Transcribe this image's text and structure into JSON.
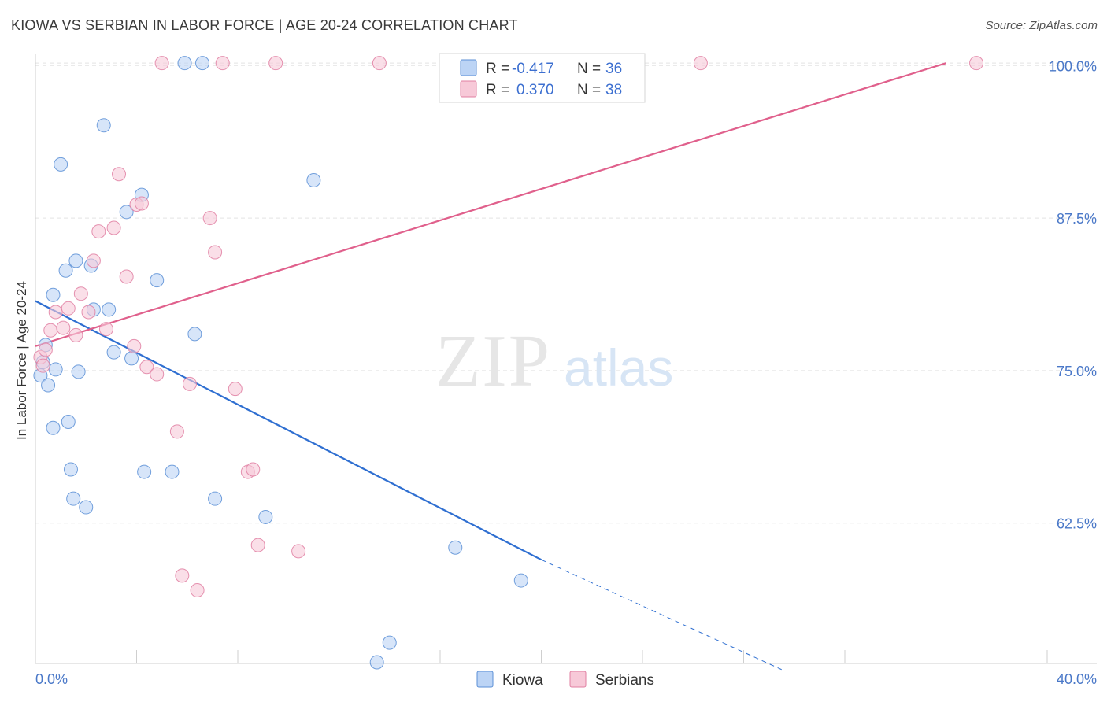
{
  "title": "KIOWA VS SERBIAN IN LABOR FORCE | AGE 20-24 CORRELATION CHART",
  "source": "Source: ZipAtlas.com",
  "watermark": {
    "zip": "ZIP",
    "atlas": "atlas"
  },
  "chart_data": {
    "type": "scatter",
    "title": "KIOWA VS SERBIAN IN LABOR FORCE | AGE 20-24 CORRELATION CHART",
    "xlabel": "",
    "ylabel": "In Labor Force | Age 20-24",
    "xlim": [
      0,
      40
    ],
    "ylim": [
      51,
      101.5
    ],
    "x_tick_labels": [
      "0.0%",
      "40.0%"
    ],
    "y_ticks": [
      62.5,
      75.0,
      87.5,
      100.0
    ],
    "y_tick_labels": [
      "62.5%",
      "75.0%",
      "87.5%",
      "100.0%"
    ],
    "grid": true,
    "legend_position": "top-center",
    "stats": [
      {
        "label_r": "R =",
        "r": "-0.417",
        "label_n": "N =",
        "n": "36"
      },
      {
        "label_r": "R =",
        "r": "0.370",
        "label_n": "N =",
        "n": "38"
      }
    ],
    "series": [
      {
        "name": "Kiowa",
        "color": "#5b8fd6",
        "fill": "#bcd4f5",
        "trend": {
          "x0": 0.0,
          "y0": 80.7,
          "x1": 20.0,
          "y1": 59.5,
          "dash_x1": 29.5,
          "dash_y1": 50.5
        },
        "points": [
          [
            0.2,
            74.6
          ],
          [
            0.3,
            75.7
          ],
          [
            0.4,
            77.1
          ],
          [
            0.5,
            73.8
          ],
          [
            0.8,
            75.1
          ],
          [
            0.7,
            81.2
          ],
          [
            0.7,
            70.3
          ],
          [
            1.0,
            91.9
          ],
          [
            1.2,
            83.2
          ],
          [
            1.3,
            70.8
          ],
          [
            1.4,
            66.9
          ],
          [
            1.5,
            64.5
          ],
          [
            1.6,
            84.0
          ],
          [
            1.7,
            74.9
          ],
          [
            2.0,
            63.8
          ],
          [
            2.2,
            83.6
          ],
          [
            2.3,
            80.0
          ],
          [
            2.7,
            95.1
          ],
          [
            2.9,
            80.0
          ],
          [
            3.1,
            76.5
          ],
          [
            3.6,
            88.0
          ],
          [
            3.8,
            76.0
          ],
          [
            4.2,
            89.4
          ],
          [
            4.3,
            66.7
          ],
          [
            4.8,
            82.4
          ],
          [
            5.4,
            66.7
          ],
          [
            5.9,
            100.2
          ],
          [
            6.3,
            78.0
          ],
          [
            6.6,
            100.2
          ],
          [
            7.1,
            64.5
          ],
          [
            9.1,
            63.0
          ],
          [
            11.0,
            90.6
          ],
          [
            13.5,
            51.1
          ],
          [
            14.0,
            52.7
          ],
          [
            16.6,
            60.5
          ],
          [
            19.2,
            57.8
          ]
        ]
      },
      {
        "name": "Serbians",
        "color": "#e07fa2",
        "fill": "#f7c9d8",
        "trend": {
          "x0": 0.0,
          "y0": 77.0,
          "x1": 36.0,
          "y1": 100.2
        },
        "points": [
          [
            0.2,
            76.1
          ],
          [
            0.3,
            75.4
          ],
          [
            0.4,
            76.7
          ],
          [
            0.6,
            78.3
          ],
          [
            0.8,
            79.8
          ],
          [
            1.1,
            78.5
          ],
          [
            1.3,
            80.1
          ],
          [
            1.6,
            77.9
          ],
          [
            1.8,
            81.3
          ],
          [
            2.1,
            79.8
          ],
          [
            2.3,
            84.0
          ],
          [
            2.5,
            86.4
          ],
          [
            2.8,
            78.4
          ],
          [
            3.1,
            86.7
          ],
          [
            3.3,
            91.1
          ],
          [
            3.6,
            82.7
          ],
          [
            3.9,
            77.0
          ],
          [
            4.0,
            88.6
          ],
          [
            4.2,
            88.7
          ],
          [
            4.4,
            75.3
          ],
          [
            4.8,
            74.7
          ],
          [
            5.0,
            100.2
          ],
          [
            5.6,
            70.0
          ],
          [
            5.8,
            58.2
          ],
          [
            6.1,
            73.9
          ],
          [
            6.4,
            57.0
          ],
          [
            6.9,
            87.5
          ],
          [
            7.1,
            84.7
          ],
          [
            7.4,
            100.2
          ],
          [
            7.9,
            73.5
          ],
          [
            8.4,
            66.7
          ],
          [
            8.6,
            66.9
          ],
          [
            8.8,
            60.7
          ],
          [
            9.5,
            100.2
          ],
          [
            10.4,
            60.2
          ],
          [
            13.6,
            100.2
          ],
          [
            26.3,
            100.2
          ],
          [
            37.2,
            100.2
          ]
        ]
      }
    ]
  }
}
